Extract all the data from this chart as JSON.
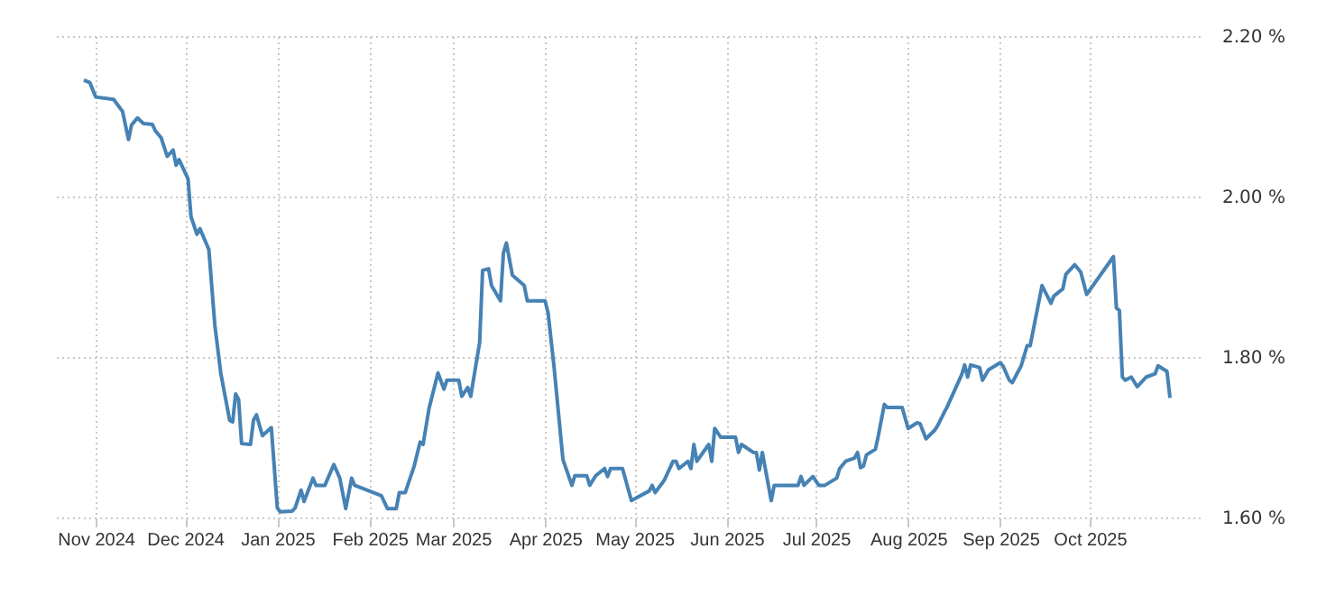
{
  "chart_data": {
    "type": "line",
    "x": [
      "2024-10-28",
      "2024-10-30",
      "2024-11-01",
      "2024-11-07",
      "2024-11-10",
      "2024-11-12",
      "2024-11-13",
      "2024-11-15",
      "2024-11-17",
      "2024-11-20",
      "2024-11-21",
      "2024-11-23",
      "2024-11-25",
      "2024-11-27",
      "2024-11-28",
      "2024-11-29",
      "2024-12-02",
      "2024-12-03",
      "2024-12-05",
      "2024-12-06",
      "2024-12-09",
      "2024-12-11",
      "2024-12-13",
      "2024-12-16",
      "2024-12-17",
      "2024-12-18",
      "2024-12-19",
      "2024-12-20",
      "2024-12-23",
      "2024-12-24",
      "2024-12-25",
      "2024-12-27",
      "2024-12-30",
      "2025-01-01",
      "2025-01-02",
      "2025-01-06",
      "2025-01-07",
      "2025-01-09",
      "2025-01-10",
      "2025-01-13",
      "2025-01-14",
      "2025-01-17",
      "2025-01-20",
      "2025-01-22",
      "2025-01-24",
      "2025-01-26",
      "2025-01-27",
      "2025-02-05",
      "2025-02-07",
      "2025-02-10",
      "2025-02-11",
      "2025-02-13",
      "2025-02-16",
      "2025-02-18",
      "2025-02-19",
      "2025-02-21",
      "2025-02-24",
      "2025-02-26",
      "2025-02-27",
      "2025-03-03",
      "2025-03-04",
      "2025-03-06",
      "2025-03-07",
      "2025-03-10",
      "2025-03-11",
      "2025-03-13",
      "2025-03-14",
      "2025-03-17",
      "2025-03-18",
      "2025-03-19",
      "2025-03-21",
      "2025-03-25",
      "2025-03-26",
      "2025-04-01",
      "2025-04-02",
      "2025-04-04",
      "2025-04-07",
      "2025-04-10",
      "2025-04-11",
      "2025-04-15",
      "2025-04-16",
      "2025-04-18",
      "2025-04-21",
      "2025-04-22",
      "2025-04-23",
      "2025-04-27",
      "2025-04-30",
      "2025-05-06",
      "2025-05-07",
      "2025-05-08",
      "2025-05-11",
      "2025-05-14",
      "2025-05-15",
      "2025-05-16",
      "2025-05-19",
      "2025-05-20",
      "2025-05-21",
      "2025-05-22",
      "2025-05-26",
      "2025-05-27",
      "2025-05-28",
      "2025-05-30",
      "2025-06-04",
      "2025-06-05",
      "2025-06-06",
      "2025-06-10",
      "2025-06-11",
      "2025-06-12",
      "2025-06-13",
      "2025-06-16",
      "2025-06-17",
      "2025-06-25",
      "2025-06-26",
      "2025-06-27",
      "2025-06-30",
      "2025-07-02",
      "2025-07-04",
      "2025-07-08",
      "2025-07-09",
      "2025-07-11",
      "2025-07-14",
      "2025-07-15",
      "2025-07-16",
      "2025-07-17",
      "2025-07-18",
      "2025-07-21",
      "2025-07-22",
      "2025-07-24",
      "2025-07-25",
      "2025-07-30",
      "2025-08-01",
      "2025-08-04",
      "2025-08-05",
      "2025-08-07",
      "2025-08-10",
      "2025-08-11",
      "2025-08-13",
      "2025-08-14",
      "2025-08-19",
      "2025-08-20",
      "2025-08-21",
      "2025-08-22",
      "2025-08-25",
      "2025-08-26",
      "2025-08-28",
      "2025-09-01",
      "2025-09-02",
      "2025-09-04",
      "2025-09-05",
      "2025-09-08",
      "2025-09-10",
      "2025-09-11",
      "2025-09-15",
      "2025-09-18",
      "2025-09-19",
      "2025-09-22",
      "2025-09-23",
      "2025-09-26",
      "2025-09-28",
      "2025-09-30",
      "2025-10-09",
      "2025-10-10",
      "2025-10-11",
      "2025-10-12",
      "2025-10-13",
      "2025-10-15",
      "2025-10-17",
      "2025-10-20",
      "2025-10-23",
      "2025-10-24",
      "2025-10-27",
      "2025-10-28"
    ],
    "series": [
      {
        "color": "#4682b4",
        "values": [
          2.145,
          2.142,
          2.124,
          2.121,
          2.106,
          2.071,
          2.089,
          2.098,
          2.091,
          2.09,
          2.082,
          2.073,
          2.05,
          2.058,
          2.039,
          2.046,
          2.022,
          1.975,
          1.953,
          1.96,
          1.934,
          1.84,
          1.78,
          1.721,
          1.719,
          1.754,
          1.747,
          1.692,
          1.691,
          1.721,
          1.728,
          1.702,
          1.712,
          1.612,
          1.607,
          1.608,
          1.612,
          1.634,
          1.62,
          1.649,
          1.64,
          1.64,
          1.666,
          1.649,
          1.611,
          1.649,
          1.64,
          1.627,
          1.611,
          1.611,
          1.631,
          1.631,
          1.664,
          1.694,
          1.691,
          1.736,
          1.78,
          1.76,
          1.771,
          1.771,
          1.751,
          1.762,
          1.751,
          1.818,
          1.908,
          1.91,
          1.889,
          1.87,
          1.93,
          1.942,
          1.902,
          1.889,
          1.87,
          1.87,
          1.855,
          1.788,
          1.672,
          1.64,
          1.652,
          1.652,
          1.64,
          1.652,
          1.661,
          1.651,
          1.661,
          1.661,
          1.621,
          1.633,
          1.64,
          1.631,
          1.646,
          1.67,
          1.67,
          1.661,
          1.67,
          1.661,
          1.691,
          1.67,
          1.691,
          1.67,
          1.711,
          1.7,
          1.7,
          1.681,
          1.691,
          1.681,
          1.681,
          1.659,
          1.681,
          1.621,
          1.64,
          1.64,
          1.651,
          1.64,
          1.651,
          1.64,
          1.64,
          1.649,
          1.661,
          1.67,
          1.674,
          1.681,
          1.662,
          1.664,
          1.678,
          1.685,
          1.702,
          1.741,
          1.737,
          1.737,
          1.711,
          1.718,
          1.717,
          1.698,
          1.709,
          1.715,
          1.73,
          1.737,
          1.778,
          1.79,
          1.775,
          1.79,
          1.787,
          1.771,
          1.784,
          1.793,
          1.788,
          1.771,
          1.768,
          1.789,
          1.814,
          1.814,
          1.889,
          1.867,
          1.876,
          1.885,
          1.903,
          1.915,
          1.906,
          1.878,
          1.925,
          1.861,
          1.858,
          1.775,
          1.771,
          1.775,
          1.763,
          1.775,
          1.779,
          1.789,
          1.782,
          1.749
        ]
      }
    ],
    "xlim": [
      "2024-10-18",
      "2025-11-07"
    ],
    "xticks": [
      {
        "value": "2024-11-01",
        "label": "Nov 2024"
      },
      {
        "value": "2024-12-01",
        "label": "Dec 2024"
      },
      {
        "value": "2025-01-01",
        "label": "Jan 2025"
      },
      {
        "value": "2025-02-01",
        "label": "Feb 2025"
      },
      {
        "value": "2025-03-01",
        "label": "Mar 2025"
      },
      {
        "value": "2025-04-01",
        "label": "Apr 2025"
      },
      {
        "value": "2025-05-01",
        "label": "May 2025"
      },
      {
        "value": "2025-06-01",
        "label": "Jun 2025"
      },
      {
        "value": "2025-07-01",
        "label": "Jul 2025"
      },
      {
        "value": "2025-08-01",
        "label": "Aug 2025"
      },
      {
        "value": "2025-09-01",
        "label": "Sep 2025"
      },
      {
        "value": "2025-10-01",
        "label": "Oct 2025"
      }
    ],
    "ylim": [
      1.6,
      2.2
    ],
    "yticks": [
      {
        "value": 1.6,
        "label": "1.60 %"
      },
      {
        "value": 1.8,
        "label": "1.80 %"
      },
      {
        "value": 2.0,
        "label": "2.00 %"
      },
      {
        "value": 2.2,
        "label": "2.20 %"
      }
    ],
    "grid": true,
    "marker": "none",
    "line_style": "solid"
  }
}
